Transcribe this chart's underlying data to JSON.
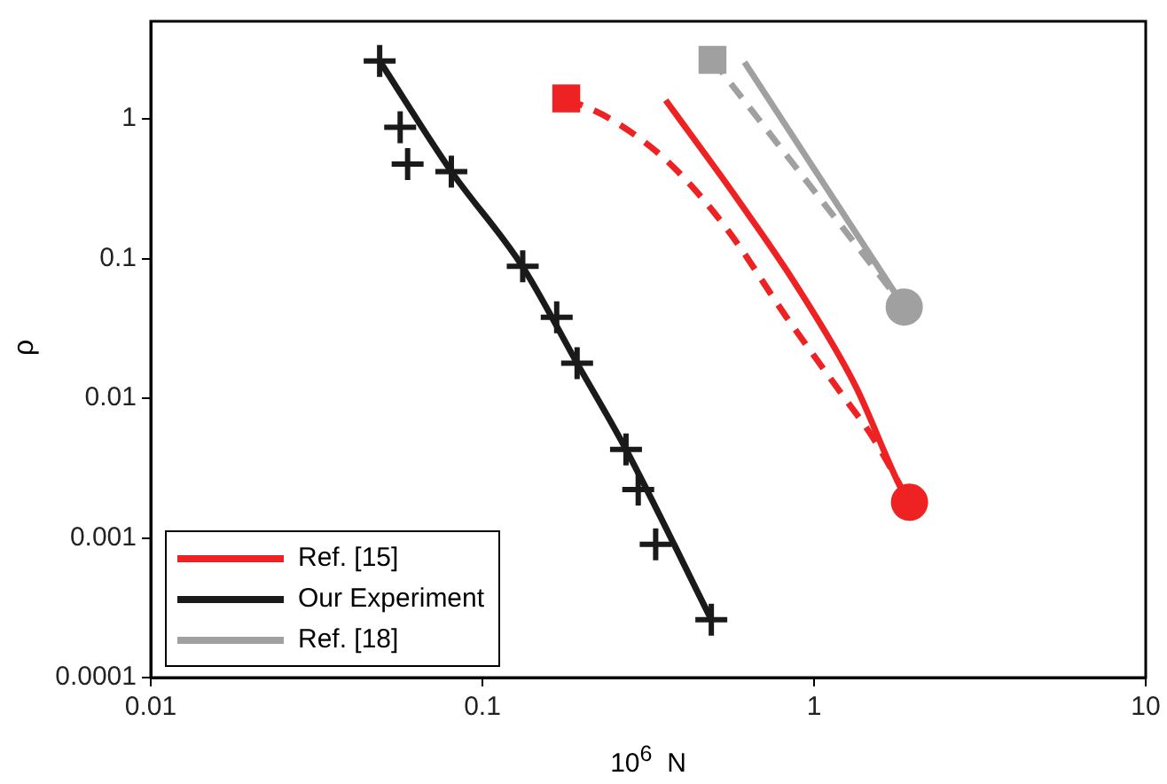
{
  "chart_data": {
    "type": "line",
    "xlabel": "10$^{6}$ N",
    "ylabel": "ρ",
    "log": "xy",
    "grid": false,
    "legend": "bottom left",
    "xlim": [
      0.01,
      10
    ],
    "xticks": [
      0.01,
      0.1,
      1,
      10
    ],
    "ylim": [
      0.0001,
      5
    ],
    "yticks": [
      0.0001,
      0.001,
      0.01,
      0.1,
      1
    ],
    "series": [
      {
        "name": "Ref. [15]",
        "color": "#ee2222",
        "line_style": "solid",
        "marker": "none",
        "x": [
          0.357,
          0.59,
          0.889,
          1.33,
          1.84,
          1.94
        ],
        "values": [
          1.36,
          0.263,
          0.063,
          0.0124,
          0.0022,
          0.0018
        ]
      },
      {
        "color": "#ee2222",
        "line_style": "dashed",
        "marker": "none",
        "x": [
          0.179,
          0.243,
          0.364,
          0.546,
          0.82,
          1.23,
          1.507,
          1.94
        ],
        "values": [
          1.4,
          1.0,
          0.489,
          0.163,
          0.039,
          0.0102,
          0.0052,
          0.0018
        ]
      },
      {
        "name": "Our Experiment",
        "color": "#1a1a1a",
        "line_style": "solid",
        "marker": "none",
        "x": [
          0.049,
          0.0806,
          0.132,
          0.193,
          0.271,
          0.49
        ],
        "values": [
          2.6,
          0.42,
          0.088,
          0.0178,
          0.0043,
          0.00026
        ]
      },
      {
        "name": "Ref. [18]",
        "color": "#a0a0a0",
        "line_style": "solid",
        "marker": "none",
        "x": [
          0.617,
          1.87
        ],
        "values": [
          2.55,
          0.045
        ]
      },
      {
        "color": "#a0a0a0",
        "line_style": "dashed",
        "marker": "none",
        "x": [
          0.494,
          1.87
        ],
        "values": [
          2.65,
          0.045
        ]
      },
      {
        "type": "scatter",
        "color": "#1a1a1a",
        "marker": "cross",
        "x": [
          0.049,
          0.0565,
          0.0595,
          0.0806,
          0.1323,
          0.1675,
          0.193,
          0.271,
          0.295,
          0.333,
          0.49
        ],
        "values": [
          2.6,
          0.87,
          0.475,
          0.42,
          0.088,
          0.038,
          0.0178,
          0.0043,
          0.00222,
          0.0009,
          0.00026
        ]
      },
      {
        "type": "scatter",
        "color": "#ee2222",
        "marker": "square",
        "x": [
          0.179
        ],
        "values": [
          1.4
        ]
      },
      {
        "type": "scatter",
        "color": "#ee2222",
        "marker": "circle",
        "x": [
          1.94
        ],
        "values": [
          0.0018
        ]
      },
      {
        "type": "scatter",
        "color": "#a0a0a0",
        "marker": "square",
        "x": [
          0.494
        ],
        "values": [
          2.65
        ]
      },
      {
        "type": "scatter",
        "color": "#a0a0a0",
        "marker": "circle",
        "x": [
          1.87
        ],
        "values": [
          0.045
        ]
      }
    ]
  }
}
